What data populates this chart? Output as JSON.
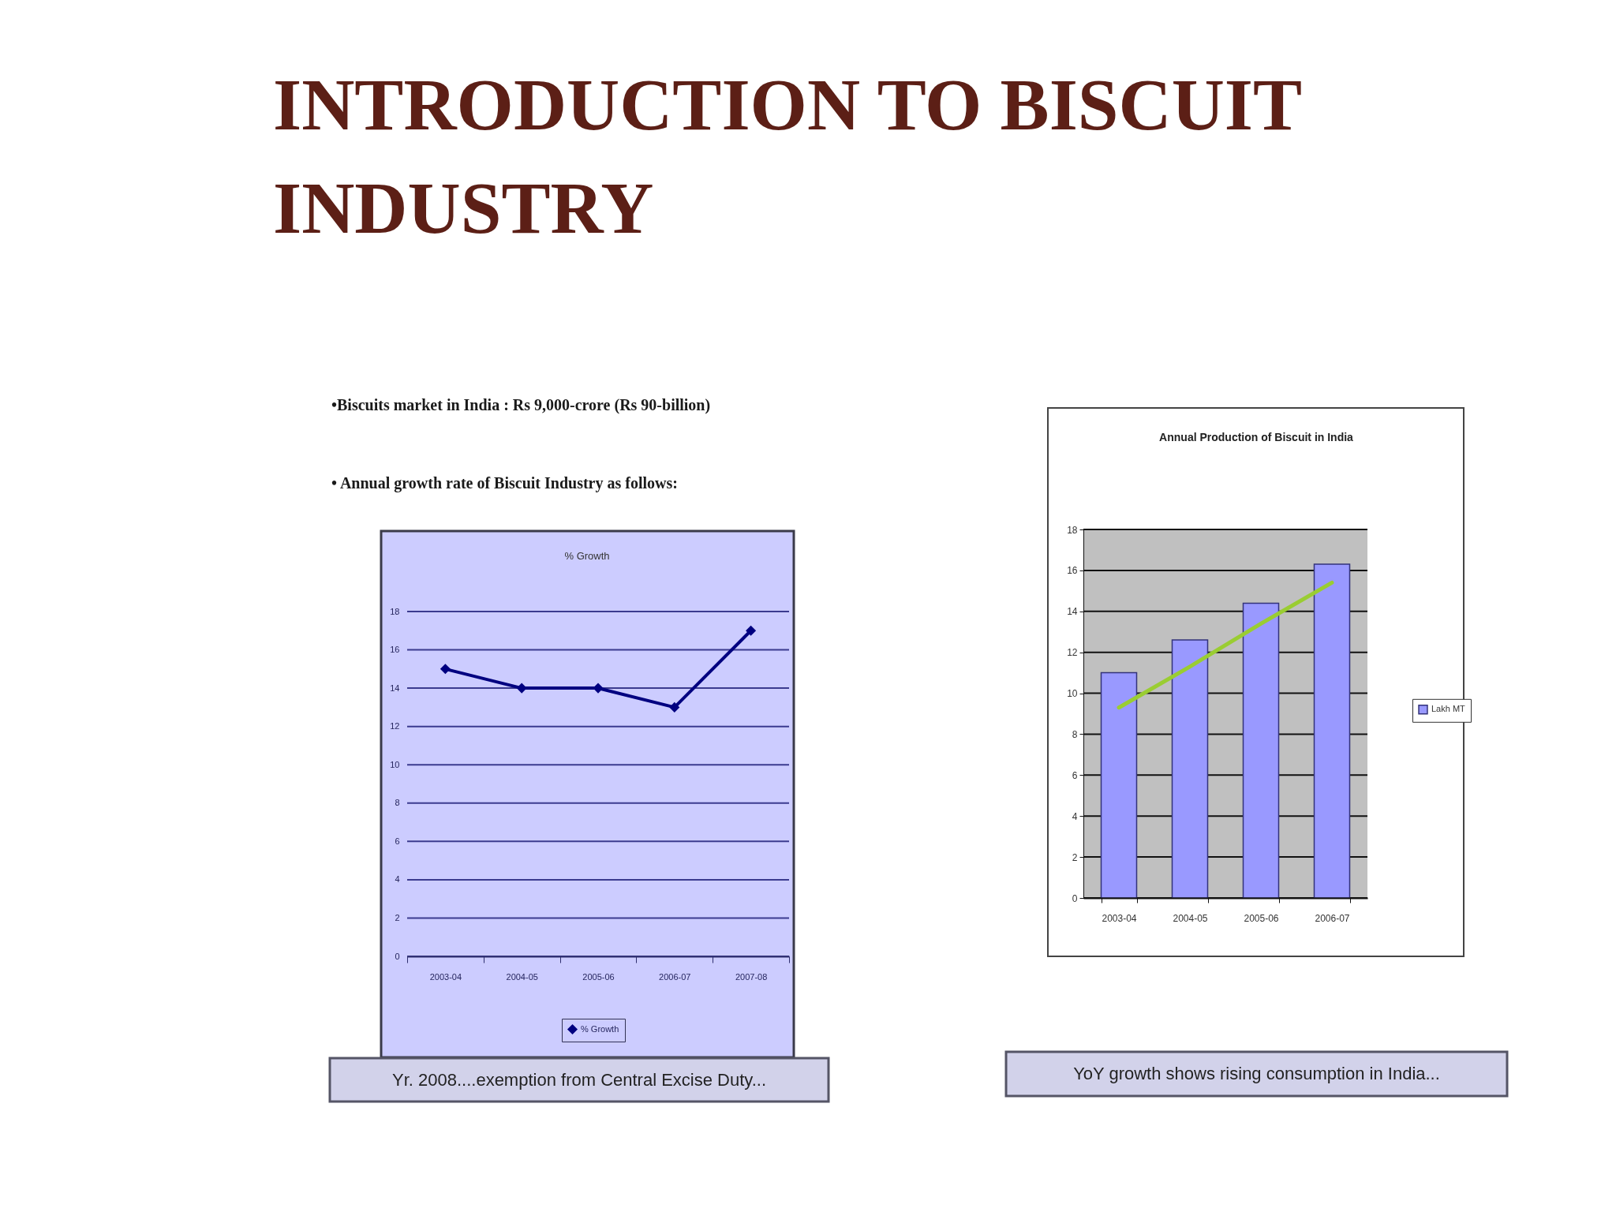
{
  "chart_data": [
    {
      "type": "other",
      "title": "INTRODUCTION TO BISCUIT INDUSTRY",
      "annotations": [
        "•Biscuits market in India : Rs 9,000-crore (Rs 90-billion)",
        "• Annual growth rate of Biscuit Industry as follows:"
      ]
    },
    {
      "type": "line",
      "title": "% Growth",
      "categories": [
        "2003-04",
        "2004-05",
        "2005-06",
        "2006-07",
        "2007-08"
      ],
      "series": [
        {
          "name": "% Growth",
          "color": "#000080",
          "values": [
            15,
            14,
            14,
            13,
            17
          ]
        }
      ],
      "ylim": [
        0,
        18
      ],
      "yticks": [
        0,
        2,
        4,
        6,
        8,
        10,
        12,
        14,
        16,
        18
      ],
      "grid": "y",
      "legend": "bottom",
      "marker": "diamond",
      "annotations": [
        "Yr. 2008....exemption from Central Excise Duty..."
      ]
    },
    {
      "type": "bar",
      "title": "Annual Production of Biscuit in India",
      "categories": [
        "2003-04",
        "2004-05",
        "2005-06",
        "2006-07"
      ],
      "series": [
        {
          "name": "Lakh MT",
          "color": "#9999ff",
          "values": [
            11,
            12.6,
            14.4,
            16.3
          ]
        },
        {
          "type": "line",
          "color": "#9acd32",
          "values": [
            9.3,
            11.3,
            13.4,
            15.4
          ]
        }
      ],
      "ylim": [
        0,
        18
      ],
      "yticks": [
        0,
        2,
        4,
        6,
        8,
        10,
        12,
        14,
        16,
        18
      ],
      "grid": "y",
      "legend": "right",
      "annotations": [
        "YoY growth shows rising consumption in India..."
      ]
    }
  ]
}
